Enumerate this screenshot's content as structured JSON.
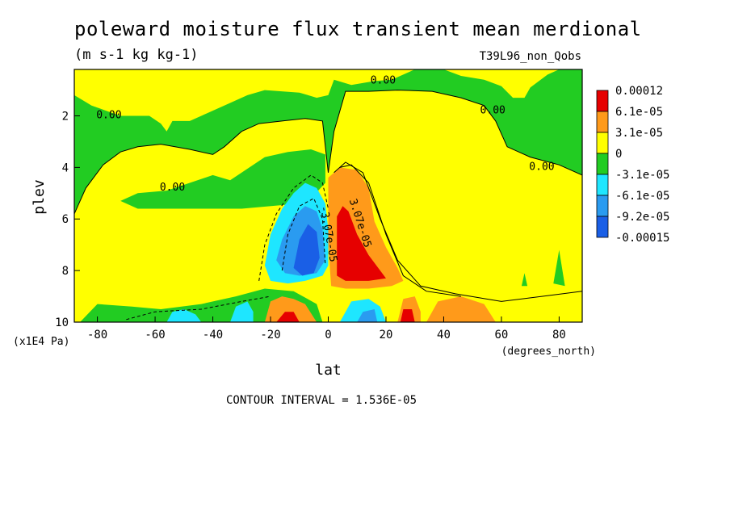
{
  "chart_data": {
    "type": "heatmap",
    "title": "poleward moisture flux transient mean merdional",
    "units_label": "(m s-1 kg kg-1)",
    "dataset_label": "T39L96_non_Qobs",
    "xlabel": "lat",
    "xunit": "(degrees_north)",
    "ylabel": "plev",
    "yunit": "(x1E4 Pa)",
    "xlim": [
      -88,
      88
    ],
    "ylim": [
      10,
      0.2
    ],
    "x_ticks": [
      -80,
      -60,
      -40,
      -20,
      0,
      20,
      40,
      60,
      80
    ],
    "y_ticks": [
      2,
      4,
      6,
      8,
      10
    ],
    "contour_interval_label": "CONTOUR INTERVAL = 1.536E-05",
    "contour_labels": [
      {
        "text": "0.00",
        "x": -76,
        "y": 2.1
      },
      {
        "text": "0.00",
        "x": -54,
        "y": 4.9
      },
      {
        "text": "0.00",
        "x": 19,
        "y": 0.75
      },
      {
        "text": "0.00",
        "x": 57,
        "y": 1.9
      },
      {
        "text": "0.00",
        "x": 74,
        "y": 4.1
      },
      {
        "text": "3.07e-05",
        "x": 10,
        "y": 6.2,
        "rotate": 72
      },
      {
        "text": "-3.07e-05",
        "x": -1,
        "y": 6.6,
        "rotate": 80
      }
    ],
    "legend": {
      "position": "right",
      "labels": [
        "0.00012",
        "6.1e-05",
        "3.1e-05",
        "0",
        "-3.1e-05",
        "-6.1e-05",
        "-9.2e-05",
        "-0.00015"
      ],
      "colors": [
        "#e60000",
        "#ff9a1a",
        "#ffff00",
        "#22cc22",
        "#1ee6ff",
        "#2a9bf0",
        "#1a5fe6"
      ]
    },
    "regions": [
      {
        "level": "negative_low",
        "color": "#22cc22",
        "polygon": [
          [
            -88,
            0.2
          ],
          [
            88,
            0.2
          ],
          [
            88,
            10
          ],
          [
            -88,
            10
          ]
        ]
      },
      {
        "level": "positive_low",
        "color": "#ffff00",
        "polygon": [
          [
            -88,
            0.2
          ],
          [
            -88,
            1.2
          ],
          [
            -82,
            1.6
          ],
          [
            -72,
            2.0
          ],
          [
            -62,
            2.0
          ],
          [
            -58,
            2.3
          ],
          [
            -56,
            2.6
          ],
          [
            -54,
            2.2
          ],
          [
            -48,
            2.2
          ],
          [
            -44,
            2.0
          ],
          [
            -40,
            1.8
          ],
          [
            -34,
            1.5
          ],
          [
            -28,
            1.2
          ],
          [
            -22,
            1.0
          ],
          [
            -10,
            1.1
          ],
          [
            -4,
            1.3
          ],
          [
            0,
            1.2
          ],
          [
            2,
            0.6
          ],
          [
            8,
            0.8
          ],
          [
            16,
            0.65
          ],
          [
            22,
            0.6
          ],
          [
            26,
            0.4
          ],
          [
            30,
            0.2
          ]
        ]
      },
      {
        "level": "positive_low",
        "color": "#ffff00",
        "polygon": [
          [
            40,
            0.2
          ],
          [
            46,
            0.45
          ],
          [
            54,
            0.6
          ],
          [
            60,
            0.85
          ],
          [
            64,
            1.3
          ],
          [
            68,
            1.3
          ],
          [
            70,
            0.9
          ],
          [
            76,
            0.4
          ],
          [
            80,
            0.2
          ]
        ]
      },
      {
        "level": "positive_low",
        "color": "#ffff00",
        "polygon": [
          [
            -88,
            5.8
          ],
          [
            -84,
            4.8
          ],
          [
            -78,
            3.9
          ],
          [
            -72,
            3.4
          ],
          [
            -66,
            3.2
          ],
          [
            -58,
            3.1
          ],
          [
            -48,
            3.3
          ],
          [
            -40,
            3.5
          ],
          [
            -36,
            3.2
          ],
          [
            -30,
            2.6
          ],
          [
            -24,
            2.3
          ],
          [
            -16,
            2.2
          ],
          [
            -8,
            2.1
          ],
          [
            -2,
            2.2
          ],
          [
            0,
            4.2
          ],
          [
            2,
            2.6
          ],
          [
            6,
            1.05
          ],
          [
            14,
            1.05
          ],
          [
            24,
            1.0
          ],
          [
            36,
            1.05
          ],
          [
            46,
            1.3
          ],
          [
            54,
            1.6
          ],
          [
            58,
            2.2
          ],
          [
            62,
            3.2
          ],
          [
            70,
            3.6
          ],
          [
            80,
            3.9
          ],
          [
            88,
            4.3
          ],
          [
            88,
            10
          ],
          [
            -88,
            10
          ],
          [
            -88,
            5.8
          ]
        ]
      },
      {
        "level": "negative_low",
        "color": "#22cc22",
        "polygon": [
          [
            -86,
            10
          ],
          [
            -80,
            9.3
          ],
          [
            -68,
            9.4
          ],
          [
            -58,
            9.5
          ],
          [
            -44,
            9.3
          ],
          [
            -32,
            9.0
          ],
          [
            -22,
            8.7
          ],
          [
            -12,
            8.8
          ],
          [
            -4,
            9.3
          ],
          [
            -2,
            10
          ]
        ]
      },
      {
        "level": "negative_low",
        "color": "#22cc22",
        "polygon": [
          [
            -72,
            5.3
          ],
          [
            -66,
            5.0
          ],
          [
            -56,
            4.9
          ],
          [
            -48,
            4.6
          ],
          [
            -40,
            4.3
          ],
          [
            -34,
            4.5
          ],
          [
            -30,
            4.2
          ],
          [
            -22,
            3.6
          ],
          [
            -14,
            3.4
          ],
          [
            -6,
            3.3
          ],
          [
            -1,
            3.5
          ],
          [
            -1,
            4.6
          ],
          [
            -6,
            5.2
          ],
          [
            -10,
            5.4
          ],
          [
            -30,
            5.6
          ],
          [
            -50,
            5.6
          ],
          [
            -66,
            5.6
          ]
        ]
      },
      {
        "level": "negative_mid",
        "color": "#1ee6ff",
        "polygon": [
          [
            -22,
            7.8
          ],
          [
            -20,
            6.6
          ],
          [
            -16,
            5.6
          ],
          [
            -12,
            5.0
          ],
          [
            -8,
            4.6
          ],
          [
            -4,
            4.8
          ],
          [
            -1,
            5.4
          ],
          [
            0,
            6.4
          ],
          [
            0,
            7.8
          ],
          [
            -2,
            8.2
          ],
          [
            -8,
            8.4
          ],
          [
            -14,
            8.5
          ],
          [
            -20,
            8.4
          ]
        ]
      },
      {
        "level": "negative_high",
        "color": "#2a9bf0",
        "polygon": [
          [
            -18,
            7.6
          ],
          [
            -16,
            6.8
          ],
          [
            -12,
            5.9
          ],
          [
            -8,
            5.5
          ],
          [
            -4,
            5.7
          ],
          [
            -2,
            6.4
          ],
          [
            -1,
            7.6
          ],
          [
            -4,
            8.1
          ],
          [
            -10,
            8.2
          ],
          [
            -15,
            8.1
          ]
        ]
      },
      {
        "level": "negative_max",
        "color": "#1a5fe6",
        "polygon": [
          [
            -12,
            7.9
          ],
          [
            -10,
            6.8
          ],
          [
            -7,
            6.2
          ],
          [
            -4,
            6.5
          ],
          [
            -3,
            7.5
          ],
          [
            -5,
            8.1
          ],
          [
            -9,
            8.2
          ]
        ]
      },
      {
        "level": "positive_mid",
        "color": "#ff9a1a",
        "polygon": [
          [
            0,
            4.4
          ],
          [
            4,
            4.0
          ],
          [
            10,
            4.1
          ],
          [
            14,
            4.8
          ],
          [
            16,
            6.1
          ],
          [
            20,
            7.1
          ],
          [
            24,
            7.9
          ],
          [
            26,
            8.4
          ],
          [
            22,
            8.6
          ],
          [
            14,
            8.7
          ],
          [
            6,
            8.7
          ],
          [
            1,
            8.6
          ],
          [
            0,
            7.0
          ]
        ]
      },
      {
        "level": "positive_high",
        "color": "#e60000",
        "polygon": [
          [
            3,
            5.9
          ],
          [
            5,
            5.5
          ],
          [
            7,
            5.7
          ],
          [
            10,
            6.6
          ],
          [
            14,
            7.4
          ],
          [
            18,
            8.0
          ],
          [
            20,
            8.3
          ],
          [
            14,
            8.4
          ],
          [
            6,
            8.4
          ],
          [
            3,
            8.2
          ]
        ]
      },
      {
        "level": "positive_mid",
        "color": "#ff9a1a",
        "polygon": [
          [
            -22,
            10
          ],
          [
            -20,
            9.2
          ],
          [
            -16,
            9.0
          ],
          [
            -12,
            9.1
          ],
          [
            -8,
            9.3
          ],
          [
            -4,
            10
          ]
        ]
      },
      {
        "level": "positive_high",
        "color": "#e60000",
        "polygon": [
          [
            -18,
            10
          ],
          [
            -15,
            9.6
          ],
          [
            -12,
            9.6
          ],
          [
            -10,
            10
          ]
        ]
      },
      {
        "level": "negative_mid",
        "color": "#1ee6ff",
        "polygon": [
          [
            -56,
            10
          ],
          [
            -54,
            9.6
          ],
          [
            -50,
            9.5
          ],
          [
            -46,
            9.7
          ],
          [
            -44,
            10
          ]
        ]
      },
      {
        "level": "negative_mid",
        "color": "#1ee6ff",
        "polygon": [
          [
            -34,
            10
          ],
          [
            -32,
            9.4
          ],
          [
            -28,
            9.2
          ],
          [
            -26,
            9.6
          ],
          [
            -26,
            10
          ]
        ]
      },
      {
        "level": "negative_mid",
        "color": "#1ee6ff",
        "polygon": [
          [
            4,
            10
          ],
          [
            8,
            9.2
          ],
          [
            14,
            9.1
          ],
          [
            18,
            9.4
          ],
          [
            20,
            10
          ]
        ]
      },
      {
        "level": "negative_high",
        "color": "#2a9bf0",
        "polygon": [
          [
            10,
            10
          ],
          [
            12,
            9.6
          ],
          [
            16,
            9.5
          ],
          [
            17,
            10
          ]
        ]
      },
      {
        "level": "positive_mid",
        "color": "#ff9a1a",
        "polygon": [
          [
            24,
            10
          ],
          [
            26,
            9.1
          ],
          [
            30,
            9.0
          ],
          [
            32,
            9.6
          ],
          [
            32,
            10
          ]
        ]
      },
      {
        "level": "positive_high",
        "color": "#e60000",
        "polygon": [
          [
            25,
            10
          ],
          [
            26,
            9.5
          ],
          [
            29,
            9.5
          ],
          [
            30,
            10
          ]
        ]
      },
      {
        "level": "positive_mid",
        "color": "#ff9a1a",
        "polygon": [
          [
            34,
            10
          ],
          [
            38,
            9.2
          ],
          [
            46,
            9.0
          ],
          [
            54,
            9.3
          ],
          [
            58,
            10
          ]
        ]
      },
      {
        "level": "negative_low",
        "color": "#22cc22",
        "polygon": [
          [
            78,
            8.5
          ],
          [
            80,
            7.2
          ],
          [
            82,
            8.6
          ]
        ]
      },
      {
        "level": "negative_low",
        "color": "#22cc22",
        "polygon": [
          [
            67,
            8.6
          ],
          [
            68,
            8.1
          ],
          [
            69,
            8.6
          ]
        ]
      }
    ],
    "contour_lines": [
      {
        "dash": false,
        "points": [
          [
            -88,
            5.8
          ],
          [
            -84,
            4.8
          ],
          [
            -78,
            3.9
          ],
          [
            -72,
            3.4
          ],
          [
            -66,
            3.2
          ],
          [
            -58,
            3.1
          ],
          [
            -48,
            3.3
          ],
          [
            -40,
            3.5
          ],
          [
            -36,
            3.2
          ],
          [
            -30,
            2.6
          ],
          [
            -24,
            2.3
          ],
          [
            -16,
            2.2
          ],
          [
            -8,
            2.1
          ],
          [
            -2,
            2.2
          ],
          [
            0,
            4.2
          ]
        ]
      },
      {
        "dash": false,
        "points": [
          [
            0,
            4.2
          ],
          [
            2,
            2.6
          ],
          [
            6,
            1.05
          ],
          [
            14,
            1.05
          ],
          [
            24,
            1.0
          ],
          [
            36,
            1.05
          ],
          [
            46,
            1.3
          ],
          [
            54,
            1.6
          ],
          [
            58,
            2.2
          ],
          [
            62,
            3.2
          ],
          [
            70,
            3.6
          ],
          [
            80,
            3.9
          ],
          [
            88,
            4.3
          ]
        ]
      },
      {
        "dash": false,
        "points": [
          [
            2,
            4.2
          ],
          [
            6,
            3.8
          ],
          [
            12,
            4.2
          ],
          [
            18,
            6.0
          ],
          [
            24,
            7.6
          ],
          [
            32,
            8.6
          ],
          [
            44,
            8.9
          ],
          [
            60,
            9.2
          ],
          [
            74,
            9.0
          ],
          [
            88,
            8.8
          ]
        ]
      },
      {
        "dash": false,
        "points": [
          [
            4,
            4.0
          ],
          [
            8,
            3.9
          ],
          [
            14,
            4.6
          ],
          [
            20,
            6.6
          ],
          [
            26,
            8.2
          ],
          [
            34,
            8.8
          ],
          [
            46,
            9.0
          ]
        ]
      },
      {
        "dash": true,
        "points": [
          [
            -24,
            8.4
          ],
          [
            -22,
            7.0
          ],
          [
            -18,
            5.8
          ],
          [
            -12,
            4.8
          ],
          [
            -6,
            4.3
          ],
          [
            -2,
            4.6
          ],
          [
            0,
            5.6
          ]
        ]
      },
      {
        "dash": true,
        "points": [
          [
            -16,
            8.0
          ],
          [
            -14,
            6.6
          ],
          [
            -10,
            5.5
          ],
          [
            -5,
            5.2
          ],
          [
            -2,
            6.0
          ],
          [
            -1,
            7.8
          ]
        ]
      },
      {
        "dash": true,
        "points": [
          [
            -70,
            9.9
          ],
          [
            -60,
            9.6
          ],
          [
            -44,
            9.5
          ],
          [
            -30,
            9.2
          ],
          [
            -20,
            9.0
          ]
        ]
      }
    ]
  }
}
